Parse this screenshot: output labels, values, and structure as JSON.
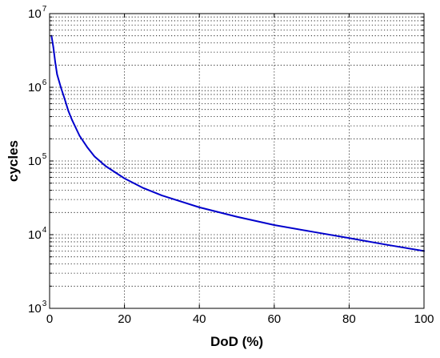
{
  "chart_data": {
    "type": "line",
    "title": "",
    "xlabel": "DoD (%)",
    "ylabel": "cycles",
    "xlim": [
      0,
      100
    ],
    "ylim": [
      1000,
      10000000
    ],
    "y_scale": "log",
    "grid": "on",
    "x_ticks": [
      {
        "value": 0,
        "label": "0"
      },
      {
        "value": 20,
        "label": "20"
      },
      {
        "value": 40,
        "label": "40"
      },
      {
        "value": 60,
        "label": "60"
      },
      {
        "value": 80,
        "label": "80"
      },
      {
        "value": 100,
        "label": "100"
      }
    ],
    "y_ticks": [
      {
        "value": 1000,
        "base": "10",
        "exponent": "3"
      },
      {
        "value": 10000,
        "base": "10",
        "exponent": "4"
      },
      {
        "value": 100000,
        "base": "10",
        "exponent": "5"
      },
      {
        "value": 1000000,
        "base": "10",
        "exponent": "6"
      },
      {
        "value": 10000000,
        "base": "10",
        "exponent": "7"
      }
    ],
    "series": [
      {
        "color": "#0000cc",
        "x": [
          0.5,
          1,
          1.5,
          2,
          3,
          4,
          5,
          6,
          8,
          10,
          12,
          15,
          20,
          25,
          30,
          40,
          50,
          60,
          70,
          80,
          90,
          100
        ],
        "y": [
          5000000,
          3500000,
          2200000,
          1500000,
          1000000,
          700000,
          480000,
          360000,
          220000,
          155000,
          115000,
          85000,
          58000,
          43000,
          34000,
          23500,
          17500,
          13500,
          11000,
          9000,
          7300,
          6000
        ]
      }
    ]
  }
}
